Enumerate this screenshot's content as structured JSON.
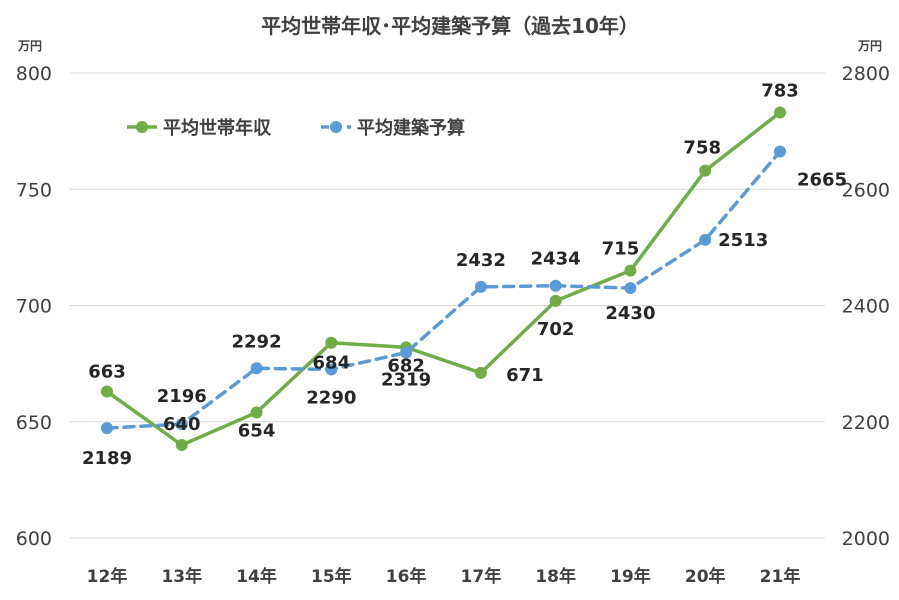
{
  "chart_data": {
    "type": "line",
    "title": "平均世帯年収･平均建築予算（過去10年）",
    "left_unit": "万円",
    "right_unit": "万円",
    "categories": [
      "12年",
      "13年",
      "14年",
      "15年",
      "16年",
      "17年",
      "18年",
      "19年",
      "20年",
      "21年"
    ],
    "y_left": {
      "min": 600,
      "max": 800,
      "ticks": [
        "600",
        "650",
        "700",
        "750",
        "800"
      ]
    },
    "y_right": {
      "min": 2000,
      "max": 2800,
      "ticks": [
        "2000",
        "2200",
        "2400",
        "2600",
        "2800"
      ]
    },
    "grid": true,
    "legend_position": "top-left",
    "series": [
      {
        "name": "平均世帯年収",
        "axis": "left",
        "style": "solid",
        "color": "#70ad47",
        "values": [
          663,
          640,
          654,
          684,
          682,
          671,
          702,
          715,
          758,
          783
        ],
        "labels": [
          "663",
          "640",
          "654",
          "684",
          "682",
          "671",
          "702",
          "715",
          "758",
          "783"
        ]
      },
      {
        "name": "平均建築予算",
        "axis": "right",
        "style": "dashed",
        "color": "#5b9bd5",
        "values": [
          2189,
          2196,
          2292,
          2290,
          2319,
          2432,
          2434,
          2430,
          2513,
          2665
        ],
        "labels": [
          "2189",
          "2196",
          "2292",
          "2290",
          "2319",
          "2432",
          "2434",
          "2430",
          "2513",
          "2665"
        ]
      }
    ]
  }
}
